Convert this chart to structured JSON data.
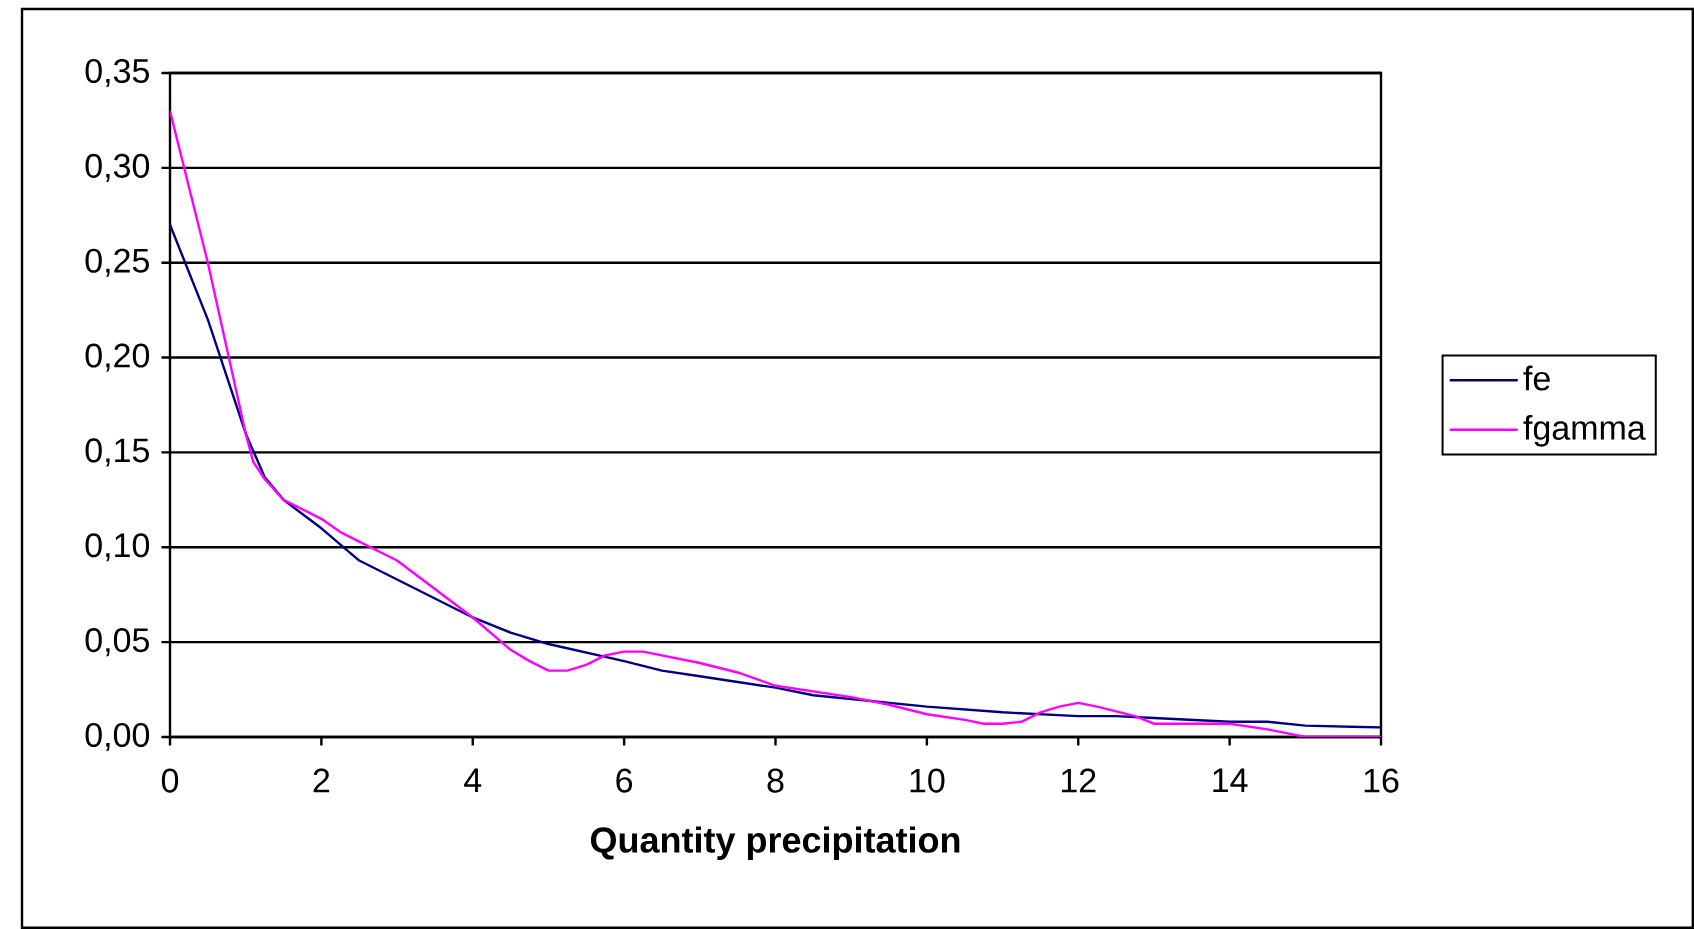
{
  "chart_data": {
    "type": "line",
    "xlabel": "Quantity precipitation",
    "xlim": [
      0,
      16
    ],
    "xticks": [
      0,
      2,
      4,
      6,
      8,
      10,
      12,
      14,
      16
    ],
    "ylim": [
      0,
      0.35
    ],
    "yticks": [
      {
        "value": 0,
        "label": "0,00"
      },
      {
        "value": 0.05,
        "label": "0,05"
      },
      {
        "value": 0.1,
        "label": "0,10"
      },
      {
        "value": 0.15,
        "label": "0,15"
      },
      {
        "value": 0.2,
        "label": "0,20"
      },
      {
        "value": 0.25,
        "label": "0,25"
      },
      {
        "value": 0.3,
        "label": "0,30"
      },
      {
        "value": 0.35,
        "label": "0,35"
      }
    ],
    "grid": "y",
    "legend": "right",
    "line_style": "solid",
    "series": [
      {
        "name": "fe",
        "color": "#000080",
        "x": [
          0,
          0.5,
          1,
          1.25,
          1.5,
          2,
          2.5,
          3,
          4,
          4.5,
          5,
          6,
          6.5,
          7,
          8,
          8.5,
          10,
          11,
          12,
          12.5,
          13,
          14,
          14.5,
          15,
          16
        ],
        "values": [
          0.27,
          0.22,
          0.16,
          0.137,
          0.125,
          0.11,
          0.093,
          0.083,
          0.063,
          0.055,
          0.049,
          0.04,
          0.035,
          0.032,
          0.026,
          0.022,
          0.016,
          0.013,
          0.011,
          0.011,
          0.01,
          0.008,
          0.008,
          0.006,
          0.005
        ]
      },
      {
        "name": "fgamma",
        "color": "#ff00ff",
        "x": [
          0,
          0.25,
          0.5,
          1,
          1.1,
          1.25,
          1.5,
          2,
          2.25,
          2.5,
          3,
          3.5,
          4,
          4.5,
          4.75,
          5,
          5.25,
          5.5,
          5.75,
          6,
          6.25,
          6.5,
          7,
          7.5,
          8,
          9,
          9.5,
          10,
          10.5,
          10.75,
          11,
          11.25,
          11.5,
          11.75,
          12,
          12.25,
          12.75,
          13,
          14,
          14.5,
          15,
          16
        ],
        "values": [
          0.33,
          0.29,
          0.25,
          0.16,
          0.145,
          0.136,
          0.125,
          0.115,
          0.108,
          0.103,
          0.093,
          0.078,
          0.063,
          0.046,
          0.04,
          0.035,
          0.035,
          0.038,
          0.043,
          0.045,
          0.045,
          0.043,
          0.039,
          0.034,
          0.027,
          0.021,
          0.017,
          0.012,
          0.009,
          0.007,
          0.007,
          0.008,
          0.013,
          0.016,
          0.018,
          0.016,
          0.011,
          0.007,
          0.007,
          0.004,
          0,
          0
        ]
      }
    ]
  }
}
